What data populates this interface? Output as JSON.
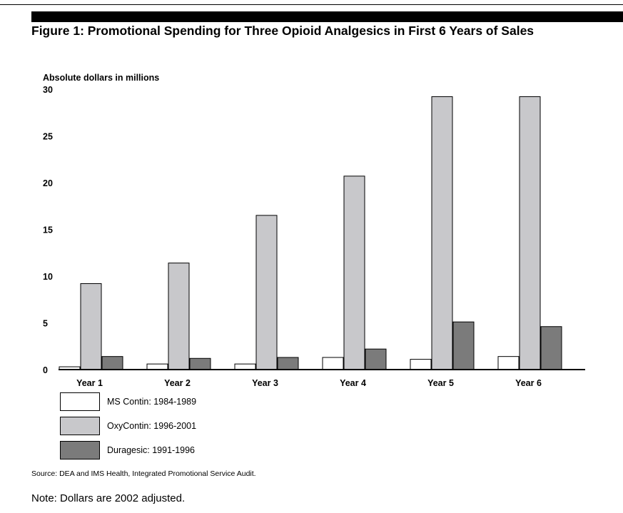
{
  "figure": {
    "title": "Figure 1: Promotional Spending for Three Opioid Analgesics in First 6 Years of Sales",
    "source": "Source:  DEA and IMS Health, Integrated Promotional Service Audit.",
    "note": "Note: Dollars are 2002 adjusted."
  },
  "chart_data": {
    "type": "bar",
    "ylabel": "Absolute dollars in millions",
    "xlabel": "",
    "ylim": [
      0,
      30
    ],
    "yticks": [
      0,
      5,
      10,
      15,
      20,
      25,
      30
    ],
    "grid": false,
    "legend_position": "bottom-left",
    "categories": [
      "Year 1",
      "Year 2",
      "Year 3",
      "Year 4",
      "Year 5",
      "Year 6"
    ],
    "series": [
      {
        "name": "MS Contin: 1984-1989",
        "color": "#ffffff",
        "values": [
          0.3,
          0.6,
          0.6,
          1.3,
          1.1,
          1.4
        ]
      },
      {
        "name": "OxyContin: 1996-2001",
        "color": "#c8c8cb",
        "values": [
          9.2,
          11.4,
          16.5,
          20.7,
          29.2,
          29.2
        ]
      },
      {
        "name": "Duragesic: 1991-1996",
        "color": "#7b7b7b",
        "values": [
          1.4,
          1.2,
          1.3,
          2.2,
          5.1,
          4.6
        ]
      }
    ]
  }
}
